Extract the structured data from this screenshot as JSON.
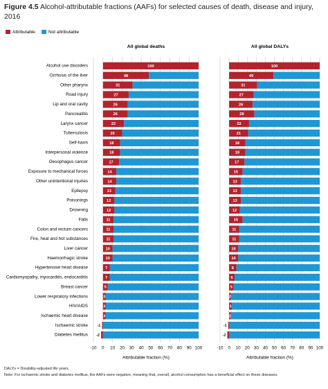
{
  "label": "Figure 4.5",
  "title": "Alcohol-attributable fractions (AAFs) for selected causes of death, disease and injury, 2016",
  "notes": [
    "DALYs = Disability-adjusted life years.",
    "Note: For ischaemic stroke and diabetes mellitus, the AAFs were negative, meaning that, overall, alcohol consumption has a beneficial effect on these diseases."
  ],
  "chart_data": [
    {
      "type": "bar",
      "orientation": "horizontal",
      "stacked": true,
      "subtitle": "All global deaths",
      "xlabel": "Attributable fraction (%)",
      "categories": [
        "Alcohol use disorders",
        "Cirrhosis of the liver",
        "Other pharynx",
        "Road injury",
        "Lip and oral cavity",
        "Pancreatitis",
        "Larynx cancer",
        "Tuberculosis",
        "Self-harm",
        "Interpersonal violence",
        "Oesophagus cancer",
        "Exposure to mechanical forces",
        "Other unintentional injuries",
        "Epilepsy",
        "Poisonings",
        "Drowning",
        "Falls",
        "Colon and rectum cancers",
        "Fire, heat and hot substances",
        "Liver cancer",
        "Haemorrhagic stroke",
        "Hypertensive heart disease",
        "Cardiomyopathy, myocarditis, endocarditis",
        "Breast cancer",
        "Lower respiratory infections",
        "HIV/AIDS",
        "Ischaemic heart disease",
        "Ischaemic stroke",
        "Diabetes mellitus"
      ],
      "series": [
        {
          "name": "Attributable",
          "color": "#b3232d",
          "values": [
            100,
            48,
            31,
            27,
            26,
            26,
            22,
            20,
            18,
            18,
            17,
            14,
            14,
            13,
            12,
            12,
            11,
            11,
            11,
            10,
            10,
            7,
            7,
            5,
            3,
            3,
            3,
            -1,
            -2
          ]
        },
        {
          "name": "Not attributable",
          "color": "#1f97d4",
          "values": [
            0,
            52,
            69,
            73,
            74,
            74,
            78,
            80,
            82,
            82,
            83,
            86,
            86,
            87,
            88,
            88,
            89,
            89,
            89,
            90,
            90,
            93,
            93,
            95,
            97,
            97,
            97,
            100,
            100
          ]
        }
      ],
      "xlim": [
        -10,
        100
      ],
      "xticks": [
        -10,
        0,
        10,
        20,
        30,
        40,
        50,
        60,
        70,
        80,
        90,
        100
      ],
      "grid": true
    },
    {
      "type": "bar",
      "orientation": "horizontal",
      "stacked": true,
      "subtitle": "All global DALYs",
      "xlabel": "Attributable fraction (%)",
      "series": [
        {
          "color": "#b3232d",
          "values": [
            100,
            49,
            31,
            27,
            26,
            28,
            22,
            21,
            18,
            18,
            17,
            15,
            13,
            13,
            13,
            12,
            15,
            11,
            11,
            10,
            10,
            8,
            6,
            5,
            2,
            3,
            2,
            -1,
            -2
          ]
        },
        {
          "color": "#1f97d4",
          "values": [
            0,
            51,
            69,
            73,
            74,
            72,
            78,
            79,
            82,
            82,
            83,
            85,
            87,
            87,
            87,
            88,
            85,
            89,
            89,
            90,
            90,
            92,
            94,
            95,
            98,
            97,
            98,
            100,
            100
          ]
        }
      ],
      "xlim": [
        -10,
        100
      ],
      "xticks": [
        -10,
        0,
        10,
        20,
        30,
        40,
        50,
        60,
        70,
        80,
        90,
        100
      ],
      "grid": true
    }
  ]
}
